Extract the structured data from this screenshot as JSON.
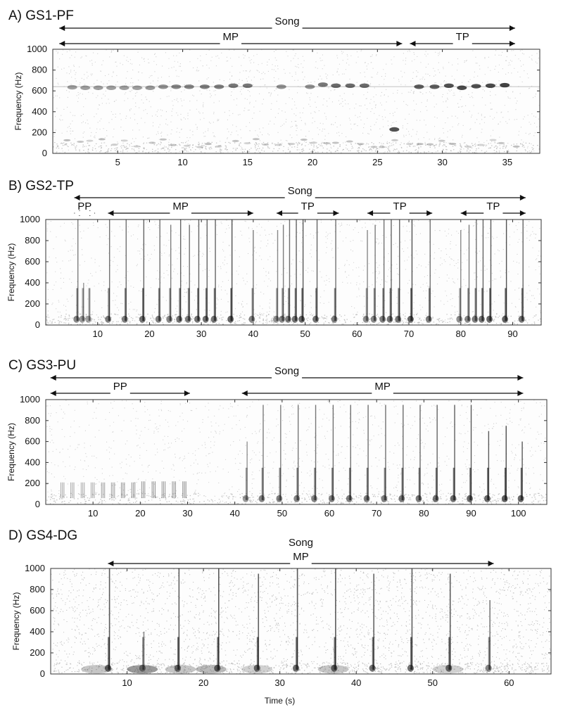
{
  "chart_data": [
    {
      "type": "spectrogram",
      "panel_title": "A) GS1-PF",
      "ylabel": "Frequency (Hz)",
      "xlabel": "",
      "xlim": [
        0,
        37.5
      ],
      "ylim": [
        0,
        1000
      ],
      "x_ticks": [
        5,
        10,
        15,
        20,
        25,
        30,
        35
      ],
      "y_ticks": [
        0,
        200,
        400,
        600,
        800,
        1000
      ],
      "annotations": [
        {
          "label": "Song",
          "start": 0.5,
          "end": 35.6,
          "level": 0
        },
        {
          "label": "MP",
          "start": 0.5,
          "end": 26.9,
          "level": 1
        },
        {
          "label": "TP",
          "start": 27.5,
          "end": 35.6,
          "level": 1
        }
      ],
      "tonal_band_hz": 640,
      "notes": [
        {
          "t": 1.5,
          "f": 635,
          "amp": 0.3
        },
        {
          "t": 2.5,
          "f": 630,
          "amp": 0.3
        },
        {
          "t": 3.5,
          "f": 630,
          "amp": 0.3
        },
        {
          "t": 4.5,
          "f": 630,
          "amp": 0.3
        },
        {
          "t": 5.5,
          "f": 630,
          "amp": 0.3
        },
        {
          "t": 6.5,
          "f": 630,
          "amp": 0.3
        },
        {
          "t": 7.5,
          "f": 630,
          "amp": 0.35
        },
        {
          "t": 8.5,
          "f": 640,
          "amp": 0.4
        },
        {
          "t": 9.5,
          "f": 640,
          "amp": 0.5
        },
        {
          "t": 10.5,
          "f": 640,
          "amp": 0.5
        },
        {
          "t": 11.7,
          "f": 640,
          "amp": 0.55
        },
        {
          "t": 12.8,
          "f": 640,
          "amp": 0.55
        },
        {
          "t": 13.9,
          "f": 650,
          "amp": 0.6
        },
        {
          "t": 15.0,
          "f": 650,
          "amp": 0.6
        },
        {
          "t": 17.6,
          "f": 640,
          "amp": 0.4
        },
        {
          "t": 19.8,
          "f": 640,
          "amp": 0.4
        },
        {
          "t": 20.8,
          "f": 660,
          "amp": 0.6
        },
        {
          "t": 21.8,
          "f": 650,
          "amp": 0.7
        },
        {
          "t": 22.9,
          "f": 650,
          "amp": 0.7
        },
        {
          "t": 24.0,
          "f": 650,
          "amp": 0.7
        },
        {
          "t": 26.3,
          "f": 230,
          "amp": 0.9
        },
        {
          "t": 28.2,
          "f": 640,
          "amp": 0.8
        },
        {
          "t": 29.4,
          "f": 640,
          "amp": 0.8
        },
        {
          "t": 30.5,
          "f": 650,
          "amp": 0.9
        },
        {
          "t": 31.5,
          "f": 630,
          "amp": 0.95
        },
        {
          "t": 32.6,
          "f": 645,
          "amp": 0.9
        },
        {
          "t": 33.7,
          "f": 650,
          "amp": 0.95
        },
        {
          "t": 34.8,
          "f": 655,
          "amp": 1.0
        }
      ]
    },
    {
      "type": "spectrogram",
      "panel_title": "B) GS2-TP",
      "ylabel": "Frequency (Hz)",
      "xlabel": "",
      "xlim": [
        0,
        95.5
      ],
      "ylim": [
        0,
        1000
      ],
      "x_ticks": [
        10,
        20,
        30,
        40,
        50,
        60,
        70,
        80,
        90
      ],
      "y_ticks": [
        0,
        200,
        400,
        600,
        800,
        1000
      ],
      "annotations": [
        {
          "label": "Song",
          "start": 5.5,
          "end": 92.5,
          "level": 0
        },
        {
          "label": "PP",
          "start": 5.5,
          "end": 9.5,
          "level": 1
        },
        {
          "label": "MP",
          "start": 12.0,
          "end": 40.0,
          "level": 1
        },
        {
          "label": "TP",
          "start": 44.5,
          "end": 56.5,
          "level": 1
        },
        {
          "label": "TP",
          "start": 62.0,
          "end": 74.5,
          "level": 1
        },
        {
          "label": "TP",
          "start": 80.0,
          "end": 92.5,
          "level": 1
        }
      ],
      "pulses": [
        {
          "t": 6.2,
          "top": 1000,
          "amp": 0.6
        },
        {
          "t": 7.3,
          "top": 400,
          "amp": 0.4
        },
        {
          "t": 8.5,
          "top": 350,
          "amp": 0.3
        },
        {
          "t": 12.3,
          "top": 1000,
          "amp": 0.7
        },
        {
          "t": 15.5,
          "top": 1000,
          "amp": 0.7
        },
        {
          "t": 18.9,
          "top": 1000,
          "amp": 0.8
        },
        {
          "t": 22.0,
          "top": 1000,
          "amp": 0.7
        },
        {
          "t": 24.1,
          "top": 950,
          "amp": 0.6
        },
        {
          "t": 26.0,
          "top": 1000,
          "amp": 0.8
        },
        {
          "t": 27.7,
          "top": 950,
          "amp": 0.7
        },
        {
          "t": 29.5,
          "top": 1000,
          "amp": 0.8
        },
        {
          "t": 31.1,
          "top": 1000,
          "amp": 0.8
        },
        {
          "t": 32.7,
          "top": 1000,
          "amp": 0.8
        },
        {
          "t": 35.9,
          "top": 1000,
          "amp": 0.95
        },
        {
          "t": 40.0,
          "top": 900,
          "amp": 0.6
        },
        {
          "t": 44.7,
          "top": 900,
          "amp": 0.5
        },
        {
          "t": 45.8,
          "top": 950,
          "amp": 0.6
        },
        {
          "t": 47.0,
          "top": 1000,
          "amp": 0.7
        },
        {
          "t": 48.3,
          "top": 1000,
          "amp": 0.8
        },
        {
          "t": 49.6,
          "top": 1000,
          "amp": 0.9
        },
        {
          "t": 52.3,
          "top": 1000,
          "amp": 0.8
        },
        {
          "t": 55.9,
          "top": 1000,
          "amp": 0.7
        },
        {
          "t": 62.0,
          "top": 900,
          "amp": 0.5
        },
        {
          "t": 63.5,
          "top": 950,
          "amp": 0.6
        },
        {
          "t": 65.2,
          "top": 1000,
          "amp": 0.7
        },
        {
          "t": 66.6,
          "top": 1000,
          "amp": 0.8
        },
        {
          "t": 68.2,
          "top": 1000,
          "amp": 0.8
        },
        {
          "t": 70.6,
          "top": 1000,
          "amp": 0.95
        },
        {
          "t": 74.1,
          "top": 1000,
          "amp": 0.7
        },
        {
          "t": 80.0,
          "top": 900,
          "amp": 0.5
        },
        {
          "t": 81.6,
          "top": 950,
          "amp": 0.6
        },
        {
          "t": 83.0,
          "top": 1000,
          "amp": 0.7
        },
        {
          "t": 84.3,
          "top": 1000,
          "amp": 0.8
        },
        {
          "t": 85.8,
          "top": 1000,
          "amp": 0.9
        },
        {
          "t": 88.8,
          "top": 1000,
          "amp": 0.95
        },
        {
          "t": 92.0,
          "top": 1000,
          "amp": 0.8
        }
      ]
    },
    {
      "type": "spectrogram",
      "panel_title": "C) GS3-PU",
      "ylabel": "Frequency (Hz)",
      "xlabel": "",
      "xlim": [
        0,
        106
      ],
      "ylim": [
        0,
        1000
      ],
      "x_ticks": [
        10,
        20,
        30,
        40,
        50,
        60,
        70,
        80,
        90,
        100
      ],
      "y_ticks": [
        0,
        200,
        400,
        600,
        800,
        1000
      ],
      "annotations": [
        {
          "label": "Song",
          "start": 1.0,
          "end": 101.0,
          "level": 0
        },
        {
          "label": "PP",
          "start": 1.0,
          "end": 30.5,
          "level": 1
        },
        {
          "label": "MP",
          "start": 41.5,
          "end": 101.0,
          "level": 1
        }
      ],
      "pp_pulses": [
        {
          "t": 3.2,
          "top": 210,
          "amp": 0.4
        },
        {
          "t": 5.3,
          "top": 210,
          "amp": 0.4
        },
        {
          "t": 7.5,
          "top": 210,
          "amp": 0.4
        },
        {
          "t": 9.6,
          "top": 210,
          "amp": 0.4
        },
        {
          "t": 11.8,
          "top": 210,
          "amp": 0.5
        },
        {
          "t": 13.9,
          "top": 210,
          "amp": 0.5
        },
        {
          "t": 16.0,
          "top": 210,
          "amp": 0.6
        },
        {
          "t": 18.2,
          "top": 210,
          "amp": 0.6
        },
        {
          "t": 20.3,
          "top": 220,
          "amp": 0.6
        },
        {
          "t": 22.5,
          "top": 220,
          "amp": 0.6
        },
        {
          "t": 24.6,
          "top": 220,
          "amp": 0.6
        },
        {
          "t": 26.8,
          "top": 220,
          "amp": 0.6
        },
        {
          "t": 29.0,
          "top": 220,
          "amp": 0.7
        }
      ],
      "pulses": [
        {
          "t": 42.6,
          "top": 600,
          "amp": 0.4
        },
        {
          "t": 46.0,
          "top": 950,
          "amp": 0.6
        },
        {
          "t": 49.7,
          "top": 950,
          "amp": 0.6
        },
        {
          "t": 53.4,
          "top": 950,
          "amp": 0.65
        },
        {
          "t": 57.1,
          "top": 950,
          "amp": 0.65
        },
        {
          "t": 60.8,
          "top": 950,
          "amp": 0.7
        },
        {
          "t": 64.5,
          "top": 950,
          "amp": 0.7
        },
        {
          "t": 68.2,
          "top": 950,
          "amp": 0.7
        },
        {
          "t": 71.9,
          "top": 950,
          "amp": 0.7
        },
        {
          "t": 75.6,
          "top": 950,
          "amp": 0.75
        },
        {
          "t": 79.2,
          "top": 950,
          "amp": 0.75
        },
        {
          "t": 82.8,
          "top": 950,
          "amp": 0.8
        },
        {
          "t": 86.5,
          "top": 950,
          "amp": 0.85
        },
        {
          "t": 90.0,
          "top": 950,
          "amp": 0.9
        },
        {
          "t": 93.7,
          "top": 700,
          "amp": 0.9
        },
        {
          "t": 97.4,
          "top": 750,
          "amp": 1.0
        },
        {
          "t": 100.8,
          "top": 600,
          "amp": 0.9
        }
      ]
    },
    {
      "type": "spectrogram",
      "panel_title": "D) GS4-DG",
      "ylabel": "Frequency (Hz)",
      "xlabel": "Time (s)",
      "xlim": [
        0,
        65.5
      ],
      "ylim": [
        0,
        1000
      ],
      "x_ticks": [
        10,
        20,
        30,
        40,
        50,
        60
      ],
      "y_ticks": [
        0,
        200,
        400,
        600,
        800,
        1000
      ],
      "annotations": [
        {
          "label": "Song",
          "start": 7.5,
          "end": 58.0,
          "level": 0,
          "label_only": true
        },
        {
          "label": "MP",
          "start": 7.5,
          "end": 58.0,
          "level": 1
        }
      ],
      "pulses": [
        {
          "t": 7.7,
          "top": 1000,
          "amp": 0.9
        },
        {
          "t": 12.2,
          "top": 400,
          "amp": 0.5
        },
        {
          "t": 16.8,
          "top": 1000,
          "amp": 0.85
        },
        {
          "t": 22.0,
          "top": 1000,
          "amp": 0.9
        },
        {
          "t": 27.2,
          "top": 950,
          "amp": 0.85
        },
        {
          "t": 32.3,
          "top": 1000,
          "amp": 0.9
        },
        {
          "t": 37.3,
          "top": 1000,
          "amp": 0.9
        },
        {
          "t": 42.3,
          "top": 950,
          "amp": 0.8
        },
        {
          "t": 47.3,
          "top": 1000,
          "amp": 0.85
        },
        {
          "t": 52.3,
          "top": 950,
          "amp": 0.85
        },
        {
          "t": 57.5,
          "top": 700,
          "amp": 0.6
        }
      ]
    }
  ]
}
